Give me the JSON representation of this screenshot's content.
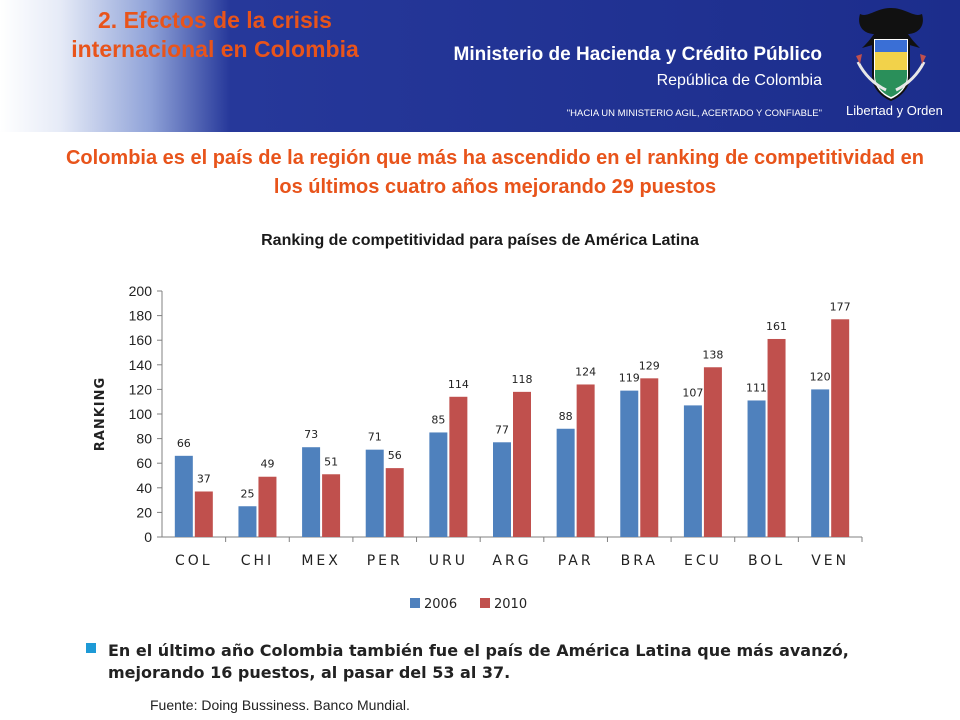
{
  "header": {
    "section_title": "2. Efectos de la crisis internacional en Colombia",
    "ministry_name": "Ministerio de Hacienda y Crédito Público",
    "ministry_country": "República de Colombia",
    "motto": "\"HACIA UN MINISTERIO AGIL, ACERTADO Y CONFIABLE\"",
    "crest_caption": "Libertad y Orden"
  },
  "headline": "Colombia es el país de la región que más ha ascendido en el ranking de competitividad en los últimos cuatro años mejorando 29 puestos",
  "chart_data": {
    "type": "bar",
    "title": "Ranking de competitividad para países de América Latina",
    "xlabel": "",
    "ylabel": "RANKING",
    "ylim": [
      0,
      200
    ],
    "yticks": [
      0,
      20,
      40,
      60,
      80,
      100,
      120,
      140,
      160,
      180,
      200
    ],
    "categories": [
      "COL",
      "CHI",
      "MEX",
      "PER",
      "URU",
      "ARG",
      "PAR",
      "BRA",
      "ECU",
      "BOL",
      "VEN"
    ],
    "series": [
      {
        "name": "2006",
        "color": "#4f81bd",
        "values": [
          66,
          25,
          73,
          71,
          85,
          77,
          88,
          119,
          107,
          111,
          120
        ]
      },
      {
        "name": "2010",
        "color": "#c0504d",
        "values": [
          37,
          49,
          51,
          56,
          114,
          118,
          124,
          129,
          138,
          161,
          177
        ]
      }
    ],
    "legend_position": "bottom-center",
    "grid": false,
    "data_labels": true
  },
  "note": "En el último año Colombia también fue el país de América Latina que más avanzó, mejorando 16 puestos, al pasar del 53 al 37.",
  "source": "Fuente: Doing Bussiness. Banco Mundial."
}
